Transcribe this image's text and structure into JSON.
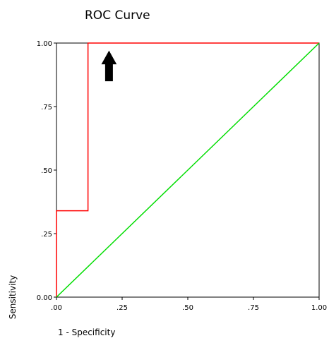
{
  "chart_data": {
    "type": "line",
    "title": "ROC Curve",
    "xlabel": "1 - Specificity",
    "ylabel": "Sensitivity",
    "xlim": [
      0,
      1
    ],
    "ylim": [
      0,
      1
    ],
    "x_ticks": [
      0,
      0.25,
      0.5,
      0.75,
      1
    ],
    "y_ticks": [
      0,
      0.25,
      0.5,
      0.75,
      1
    ],
    "x_tick_labels": [
      ".00",
      ".25",
      ".50",
      ".75",
      "1.00"
    ],
    "y_tick_labels": [
      "0.00",
      ".25",
      ".50",
      ".75",
      "1.00"
    ],
    "grid": false,
    "legend": "none",
    "series": [
      {
        "color": "#ff0000",
        "x": [
          0,
          0,
          0.12,
          0.12,
          1
        ],
        "y": [
          0,
          0.34,
          0.34,
          1,
          1
        ]
      },
      {
        "color": "#00dd00",
        "x": [
          0,
          1
        ],
        "y": [
          0,
          1
        ]
      }
    ],
    "annotations": [
      {
        "type": "arrow-up",
        "x": 0.2,
        "y": 0.94,
        "color": "#000000"
      }
    ]
  }
}
